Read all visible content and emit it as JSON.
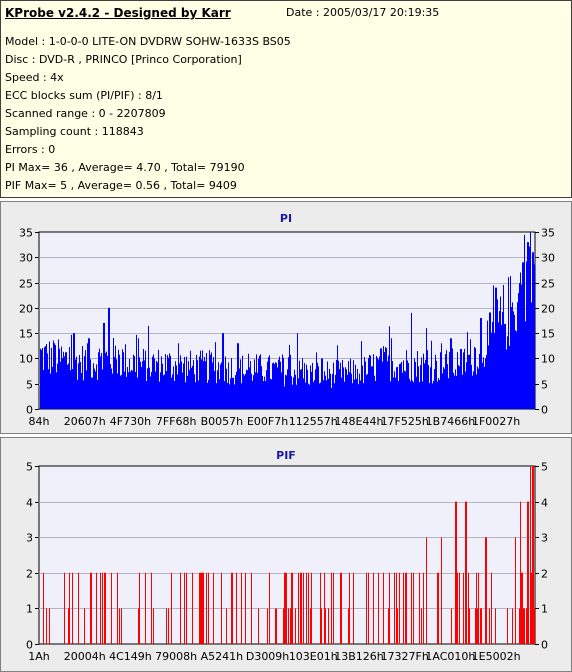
{
  "info": {
    "title": "KProbe v2.4.2 - Designed by Karr",
    "date": "Date : 2005/03/17 20:19:35",
    "lines": [
      "Model : 1-0-0-0 LITE-ON DVDRW SOHW-1633S BS05",
      "Disc : DVD-R , PRINCO [Princo Corporation]",
      "Speed : 4x",
      "ECC blocks sum (PI/PIF) : 8/1",
      "Scanned range : 0 - 2207809",
      "Sampling count : 118843",
      "Errors : 0",
      "PI Max= 36 , Average= 4.70 , Total= 79190",
      "PIF Max= 5 , Average= 0.56 , Total= 9409"
    ]
  },
  "colors": {
    "pi_fill": "#0000ff",
    "pif_fill": "#ff0000",
    "plot_bg": "#f0f0fa",
    "grid": "#b4b4c8"
  },
  "chart_data": [
    {
      "type": "area",
      "title": "PI",
      "ylim": [
        0,
        35
      ],
      "yticks": [
        0,
        5,
        10,
        15,
        20,
        25,
        30,
        35
      ],
      "xtick_labels": [
        "84h",
        "20607h",
        "4F730h",
        "7FF68h",
        "B0057h",
        "E00F7h",
        "112557h",
        "148E44h",
        "17F525h",
        "1B7466h",
        "1F0027h"
      ],
      "grid": true,
      "profile": [
        [
          0,
          11.5
        ],
        [
          0.05,
          10.5
        ],
        [
          0.1,
          10
        ],
        [
          0.15,
          11
        ],
        [
          0.2,
          9.5
        ],
        [
          0.25,
          9.5
        ],
        [
          0.3,
          9
        ],
        [
          0.35,
          9
        ],
        [
          0.4,
          8.5
        ],
        [
          0.45,
          8.5
        ],
        [
          0.5,
          8
        ],
        [
          0.55,
          7.5
        ],
        [
          0.6,
          7.5
        ],
        [
          0.65,
          8
        ],
        [
          0.7,
          10
        ],
        [
          0.75,
          9.5
        ],
        [
          0.8,
          9
        ],
        [
          0.85,
          9.5
        ],
        [
          0.88,
          12
        ],
        [
          0.91,
          15
        ],
        [
          0.94,
          20
        ],
        [
          0.97,
          23
        ],
        [
          1.0,
          28
        ]
      ],
      "spikes": [
        [
          0.0,
          14
        ],
        [
          0.03,
          13
        ],
        [
          0.07,
          15
        ],
        [
          0.1,
          14
        ],
        [
          0.13,
          17
        ],
        [
          0.14,
          20
        ],
        [
          0.2,
          14
        ],
        [
          0.28,
          13
        ],
        [
          0.37,
          15
        ],
        [
          0.4,
          13
        ],
        [
          0.52,
          15
        ],
        [
          0.57,
          10
        ],
        [
          0.69,
          12
        ],
        [
          0.71,
          14
        ],
        [
          0.75,
          19
        ],
        [
          0.78,
          16
        ],
        [
          0.81,
          13
        ],
        [
          0.83,
          14
        ],
        [
          0.89,
          18
        ],
        [
          0.92,
          24
        ],
        [
          0.95,
          25
        ],
        [
          0.97,
          27
        ],
        [
          0.975,
          29
        ],
        [
          0.985,
          33
        ],
        [
          0.99,
          36
        ],
        [
          0.995,
          31
        ],
        [
          1.0,
          35
        ]
      ]
    },
    {
      "type": "bar",
      "title": "PIF",
      "ylim": [
        0,
        5
      ],
      "yticks": [
        0,
        1,
        2,
        3,
        4,
        5
      ],
      "xtick_labels": [
        "1Ah",
        "20004h",
        "4C149h",
        "79008h",
        "A5241h",
        "D3009h",
        "103E01h",
        "13B126h",
        "17327Fh",
        "1AC010h",
        "1E5002h"
      ],
      "grid": true,
      "density": [
        [
          0,
          0.55
        ],
        [
          0.2,
          0.5
        ],
        [
          0.45,
          0.5
        ],
        [
          0.65,
          0.55
        ],
        [
          0.75,
          0.65
        ],
        [
          0.85,
          0.75
        ],
        [
          0.95,
          0.8
        ],
        [
          1.0,
          0.85
        ]
      ],
      "spikes": [
        [
          0.78,
          3
        ],
        [
          0.81,
          3
        ],
        [
          0.84,
          4
        ],
        [
          0.86,
          4
        ],
        [
          0.9,
          3
        ],
        [
          0.96,
          3
        ],
        [
          0.97,
          4
        ],
        [
          0.985,
          4
        ],
        [
          0.99,
          5
        ],
        [
          0.995,
          5
        ],
        [
          1.0,
          3
        ]
      ]
    }
  ]
}
